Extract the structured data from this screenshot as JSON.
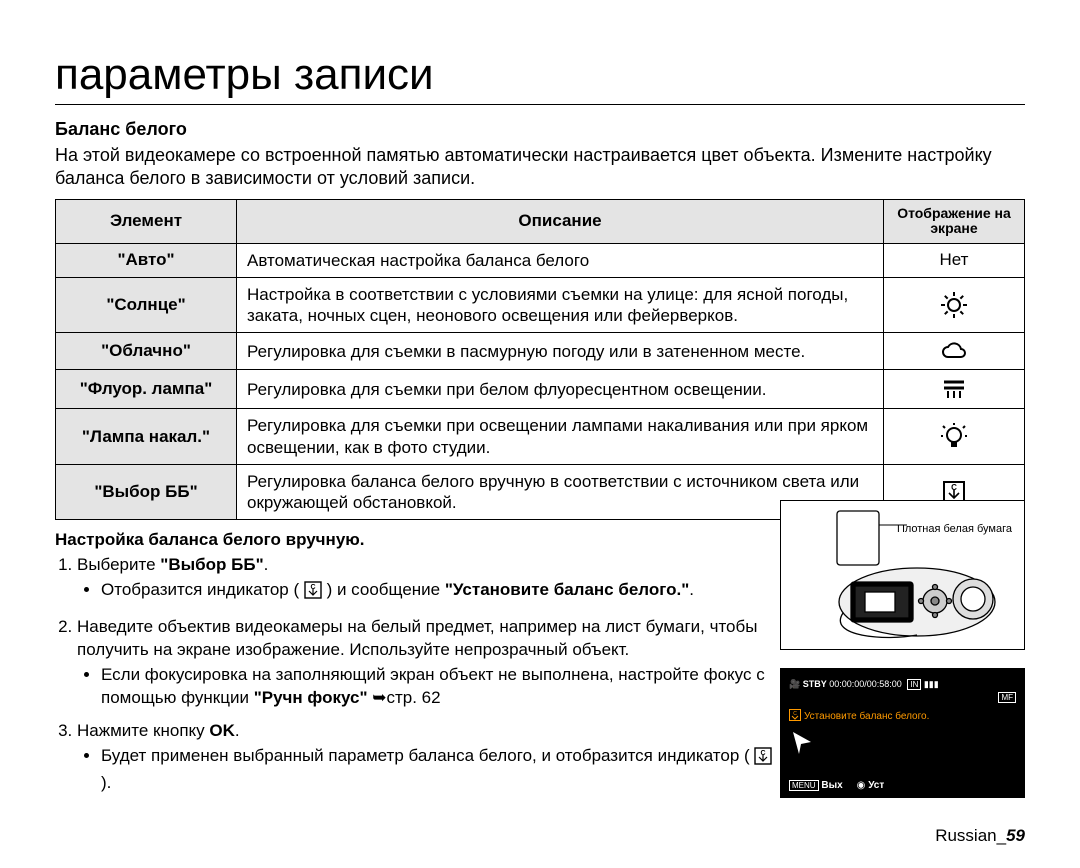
{
  "title": "параметры записи",
  "section_heading": "Баланс белого",
  "intro": "На этой видеокамере со встроенной памятью автоматически настраивается цвет объекта. Измените настройку баланса белого в зависимости от условий записи.",
  "table": {
    "headers": {
      "element": "Элемент",
      "description": "Описание",
      "display": "Отображение на экране"
    },
    "rows": [
      {
        "elem": "\"Авто\"",
        "desc": "Автоматическая настройка баланса белого",
        "icon_text": "Нет",
        "icon": null
      },
      {
        "elem": "\"Солнце\"",
        "desc": "Настройка в соответствии с условиями съемки на улице: для ясной погоды, заката, ночных сцен, неонового освещения или фейерверков.",
        "icon_text": null,
        "icon": "sun"
      },
      {
        "elem": "\"Облачно\"",
        "desc": "Регулировка для съемки в пасмурную погоду или в затененном месте.",
        "icon_text": null,
        "icon": "cloud"
      },
      {
        "elem": "\"Флуор. лампа\"",
        "desc": "Регулировка для съемки при белом флуоресцентном освещении.",
        "icon_text": null,
        "icon": "fluor"
      },
      {
        "elem": "\"Лампа накал.\"",
        "desc": "Регулировка для съемки при освещении лампами накаливания или при ярком освещении, как в фото студии.",
        "icon_text": null,
        "icon": "tungsten"
      },
      {
        "elem": "\"Выбор ББ\"",
        "desc": "Регулировка баланса белого вручную в соответствии с источником света или окружающей обстановкой.",
        "icon_text": null,
        "icon": "custom"
      }
    ]
  },
  "manual_heading": "Настройка баланса белого вручную.",
  "step1_a": "Выберите ",
  "step1_b": "\"Выбор ББ\"",
  "step1_c": ".",
  "step1_sub_a": "Отобразится индикатор ( ",
  "step1_sub_b": " ) и сообщение ",
  "step1_sub_c": "\"Установите баланс белого.\"",
  "step1_sub_d": ".",
  "step2_main": "Наведите объектив видеокамеры на белый предмет, например на лист бумаги, чтобы получить на экране изображение. Используйте непрозрачный объект.",
  "step2_sub_a": "Если фокусировка на заполняющий экран объект не выполнена, настройте фокус с помощью функции ",
  "step2_sub_b": "\"Ручн фокус\"",
  "step2_sub_c": " ➥стр. 62",
  "step3_a": "Нажмите кнопку ",
  "step3_b": "OK",
  "step3_c": ".",
  "step3_sub_a": "Будет применен выбранный параметр баланса белого, и отобразится индикатор ( ",
  "step3_sub_b": " ).",
  "fig1_label": "Плотная белая бумага",
  "screen": {
    "stby": "STBY",
    "time": "00:00:00/00:58:00",
    "mem": "IN",
    "msg": "Установите баланс белого.",
    "menu": "MENU",
    "exit": "Вых",
    "set": "Уст"
  },
  "footer_lang": "Russian_",
  "footer_page": "59",
  "colors": {
    "header_bg": "#e4e4e4",
    "border": "#000000",
    "text": "#000000",
    "screen_bg": "#000000",
    "screen_text": "#ffffff",
    "screen_orange": "#ff9a00"
  }
}
